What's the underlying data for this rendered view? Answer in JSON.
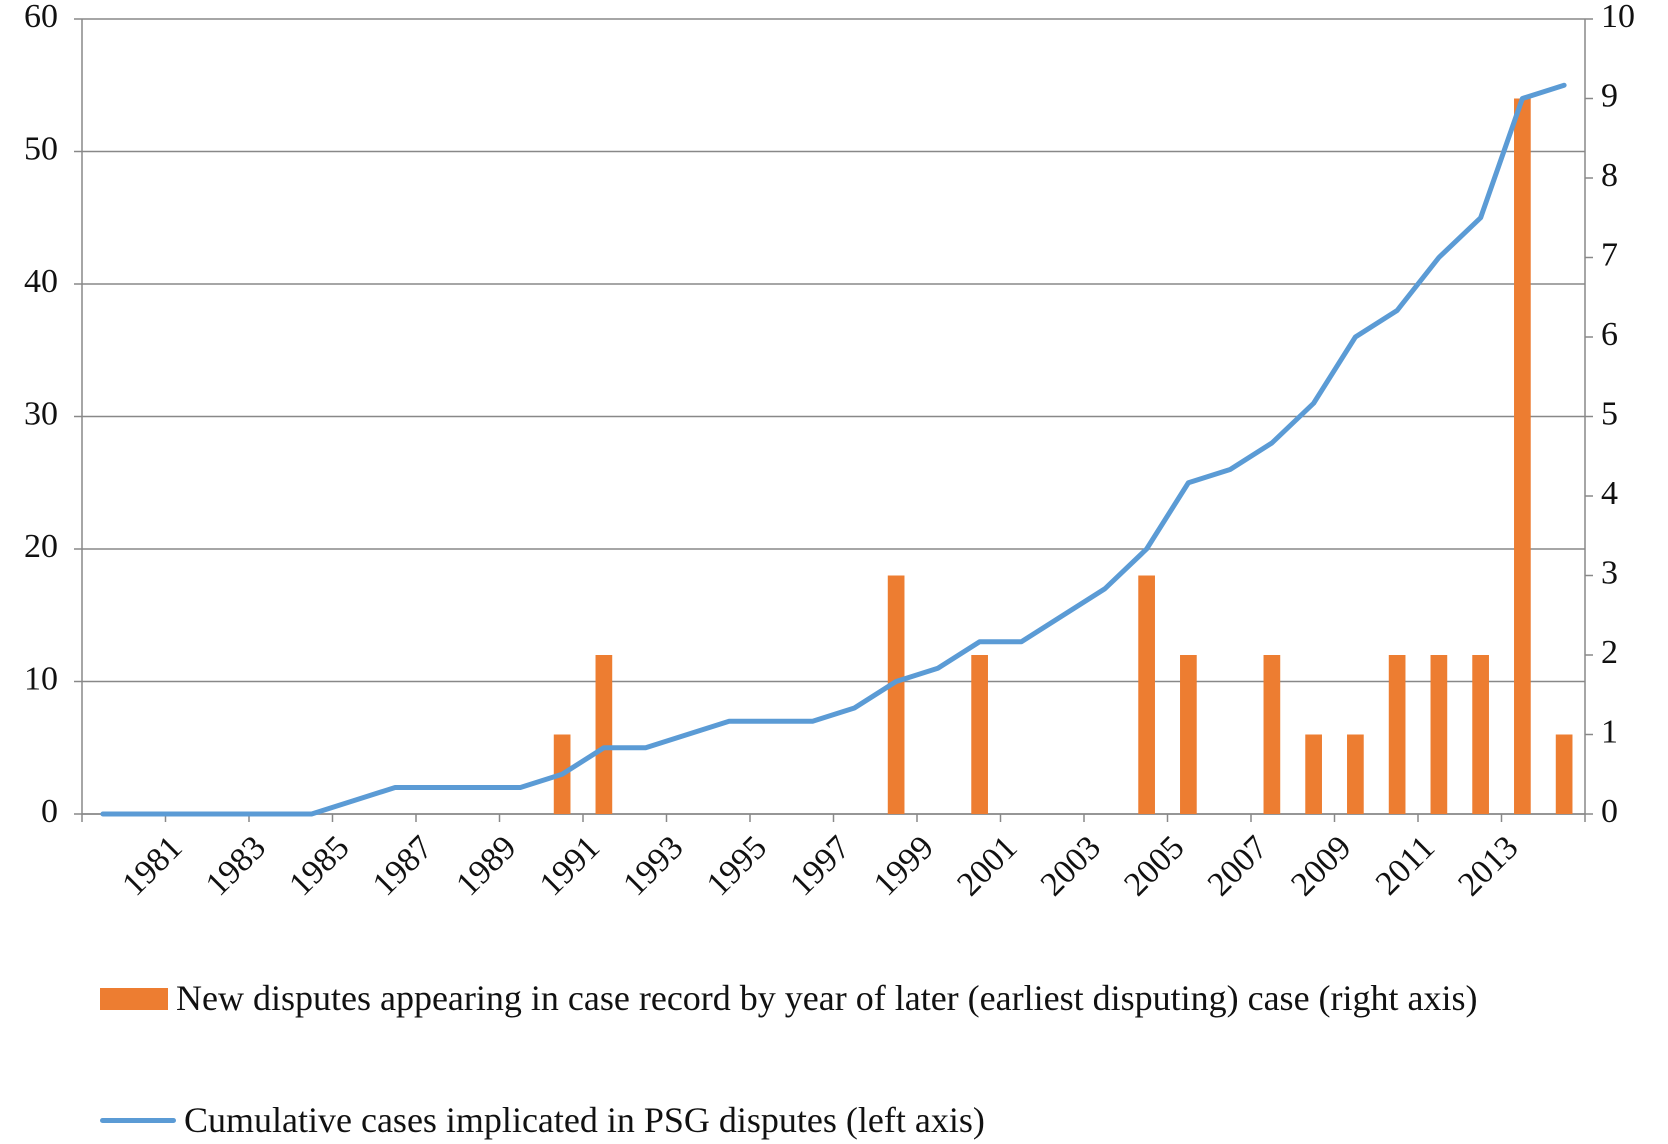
{
  "chart_data": {
    "type": "bar-line",
    "categories": [
      null,
      null,
      "1981",
      null,
      "1983",
      null,
      "1985",
      null,
      "1987",
      null,
      "1989",
      null,
      "1991",
      null,
      "1993",
      null,
      "1995",
      null,
      "1997",
      null,
      "1999",
      null,
      "2001",
      null,
      "2003",
      null,
      "2005",
      null,
      "2007",
      null,
      "2009",
      null,
      "2011",
      null,
      "2013",
      null
    ],
    "series": [
      {
        "name": "New disputes appearing in case record by year of later (earliest disputing) case (right axis)",
        "type": "bar",
        "axis": "y2",
        "color": "#ed7d31",
        "values": [
          0,
          0,
          0,
          0,
          0,
          0,
          0,
          0,
          0,
          0,
          0,
          1,
          2,
          0,
          0,
          0,
          0,
          0,
          0,
          3,
          0,
          2,
          0,
          0,
          0,
          3,
          2,
          0,
          2,
          1,
          1,
          2,
          2,
          2,
          9,
          1
        ]
      },
      {
        "name": "Cumulative cases implicated in PSG disputes (left axis)",
        "type": "line",
        "axis": "y",
        "color": "#5b9bd5",
        "values": [
          0,
          0,
          0,
          0,
          0,
          0,
          1,
          2,
          2,
          2,
          2,
          3,
          5,
          5,
          6,
          7,
          7,
          7,
          8,
          10,
          11,
          13,
          13,
          15,
          17,
          20,
          25,
          26,
          28,
          31,
          36,
          38,
          42,
          45,
          54,
          55
        ]
      }
    ],
    "ylim": [
      0,
      60
    ],
    "yticks": [
      0,
      10,
      20,
      30,
      40,
      50,
      60
    ],
    "y2lim": [
      0,
      10
    ],
    "y2ticks": [
      0,
      1,
      2,
      3,
      4,
      5,
      6,
      7,
      8,
      9,
      10
    ],
    "grid": true,
    "legend": "bottom"
  }
}
